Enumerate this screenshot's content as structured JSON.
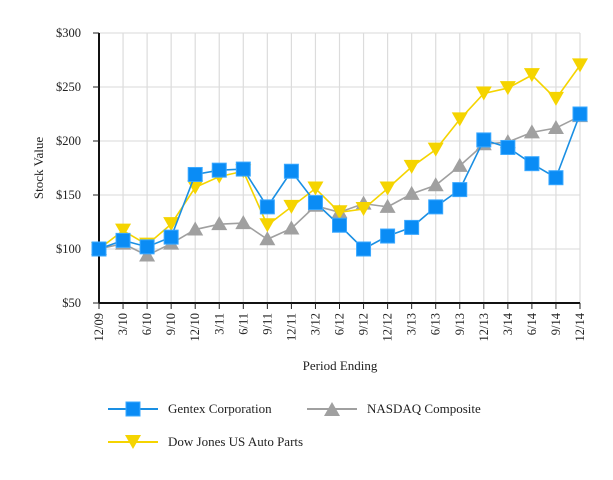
{
  "chart_data": {
    "type": "line",
    "title": "",
    "xlabel": "Period Ending",
    "ylabel": "Stock Value",
    "ylim": [
      50,
      300
    ],
    "yticks": [
      50,
      100,
      150,
      200,
      250,
      300
    ],
    "ytick_labels": [
      "$50",
      "$100",
      "$150",
      "$200",
      "$250",
      "$300"
    ],
    "categories": [
      "12/09",
      "3/10",
      "6/10",
      "9/10",
      "12/10",
      "3/11",
      "6/11",
      "9/11",
      "12/11",
      "3/12",
      "6/12",
      "9/12",
      "12/12",
      "3/13",
      "6/13",
      "9/13",
      "12/13",
      "3/14",
      "6/14",
      "9/14",
      "12/14"
    ],
    "grid": true,
    "legend_position": "bottom",
    "series": [
      {
        "name": "Gentex Corporation",
        "color": "#1a8fe3",
        "marker": "square",
        "values": [
          100,
          108,
          102,
          111,
          169,
          173,
          174,
          139,
          172,
          143,
          122,
          100,
          112,
          120,
          139,
          155,
          201,
          194,
          179,
          166,
          225
        ]
      },
      {
        "name": "NASDAQ Composite",
        "color": "#a0a0a0",
        "marker": "triangle-up",
        "values": [
          100,
          105,
          94,
          105,
          118,
          123,
          124,
          109,
          119,
          140,
          134,
          142,
          139,
          151,
          159,
          177,
          197,
          199,
          208,
          212,
          223
        ]
      },
      {
        "name": "Dow Jones US Auto Parts",
        "color": "#f5d400",
        "marker": "triangle-down",
        "values": [
          100,
          117,
          104,
          123,
          157,
          167,
          172,
          122,
          139,
          156,
          134,
          137,
          156,
          176,
          192,
          220,
          244,
          249,
          261,
          239,
          270
        ]
      }
    ]
  }
}
